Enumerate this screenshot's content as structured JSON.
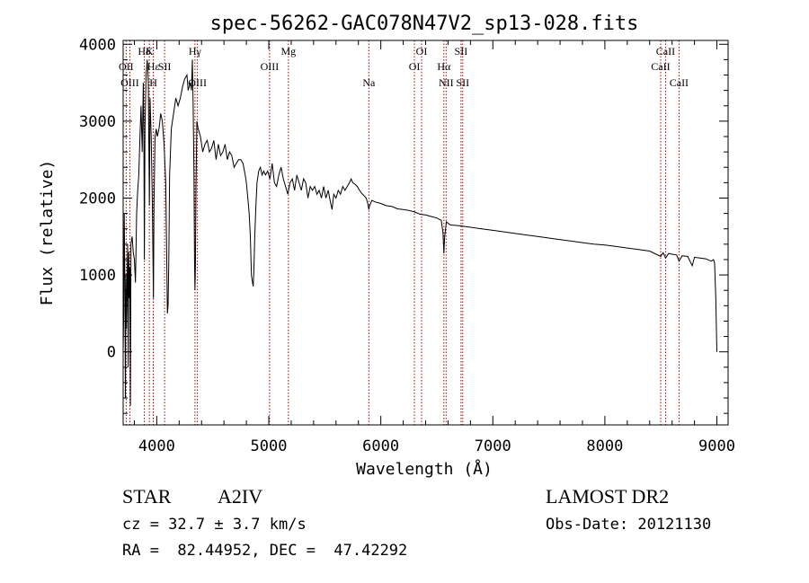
{
  "chart_data": {
    "type": "line",
    "title": "spec-56262-GAC078N47V2_sp13-028.fits",
    "xlabel": "Wavelength (Å)",
    "ylabel": "Flux (relative)",
    "xlim": [
      3700,
      9100
    ],
    "ylim": [
      -950,
      4050
    ],
    "xticks": [
      4000,
      5000,
      6000,
      7000,
      8000,
      9000
    ],
    "yticks": [
      0,
      1000,
      2000,
      3000,
      4000
    ],
    "grid": false,
    "line_color": "#000000",
    "marker_color": "#aa0000",
    "lines": [
      {
        "name": "Hδ",
        "x": 3889,
        "row": 0
      },
      {
        "name": "K",
        "x": 3934,
        "row": 0
      },
      {
        "name": "OII",
        "x": 3727,
        "row": 1
      },
      {
        "name": "Hε",
        "x": 3970,
        "row": 1
      },
      {
        "name": "SII",
        "x": 4070,
        "row": 1
      },
      {
        "name": "OIII",
        "x": 3760,
        "row": 2
      },
      {
        "name": "H",
        "x": 3969,
        "row": 2
      },
      {
        "name": "Hγ",
        "x": 4341,
        "row": 0
      },
      {
        "name": "OIII",
        "x": 4363,
        "row": 2
      },
      {
        "name": "OIII",
        "x": 5007,
        "row": 1
      },
      {
        "name": "Mg",
        "x": 5175,
        "row": 0
      },
      {
        "name": "Na",
        "x": 5893,
        "row": 2
      },
      {
        "name": "OI",
        "x": 6300,
        "row": 1
      },
      {
        "name": "OI",
        "x": 6364,
        "row": 0
      },
      {
        "name": "Hα",
        "x": 6563,
        "row": 1
      },
      {
        "name": "NII",
        "x": 6583,
        "row": 2
      },
      {
        "name": "SII",
        "x": 6716,
        "row": 0
      },
      {
        "name": "SII",
        "x": 6731,
        "row": 2
      },
      {
        "name": "CaII",
        "x": 8498,
        "row": 1
      },
      {
        "name": "CaII",
        "x": 8542,
        "row": 0
      },
      {
        "name": "CaII",
        "x": 8662,
        "row": 2
      }
    ],
    "series": [
      {
        "points": [
          [
            3700,
            0
          ],
          [
            3705,
            500
          ],
          [
            3710,
            1800
          ],
          [
            3715,
            900
          ],
          [
            3720,
            -600
          ],
          [
            3725,
            1000
          ],
          [
            3730,
            300
          ],
          [
            3740,
            1400
          ],
          [
            3745,
            -200
          ],
          [
            3750,
            1300
          ],
          [
            3755,
            700
          ],
          [
            3760,
            1100
          ],
          [
            3765,
            -700
          ],
          [
            3770,
            1400
          ],
          [
            3780,
            1500
          ],
          [
            3790,
            1300
          ],
          [
            3800,
            1200
          ],
          [
            3810,
            900
          ],
          [
            3820,
            1800
          ],
          [
            3830,
            2100
          ],
          [
            3840,
            2300
          ],
          [
            3850,
            2800
          ],
          [
            3860,
            3200
          ],
          [
            3870,
            2600
          ],
          [
            3880,
            3500
          ],
          [
            3885,
            2700
          ],
          [
            3889,
            1200
          ],
          [
            3895,
            2900
          ],
          [
            3905,
            3600
          ],
          [
            3915,
            3800
          ],
          [
            3925,
            3500
          ],
          [
            3934,
            1900
          ],
          [
            3940,
            3300
          ],
          [
            3950,
            2800
          ],
          [
            3960,
            2000
          ],
          [
            3970,
            700
          ],
          [
            3975,
            1900
          ],
          [
            3985,
            2800
          ],
          [
            3995,
            2900
          ],
          [
            4005,
            2800
          ],
          [
            4020,
            2900
          ],
          [
            4035,
            3100
          ],
          [
            4050,
            3000
          ],
          [
            4065,
            2700
          ],
          [
            4080,
            2200
          ],
          [
            4090,
            1100
          ],
          [
            4095,
            500
          ],
          [
            4101,
            600
          ],
          [
            4108,
            1200
          ],
          [
            4115,
            2300
          ],
          [
            4130,
            2900
          ],
          [
            4150,
            3100
          ],
          [
            4170,
            3300
          ],
          [
            4190,
            3200
          ],
          [
            4210,
            3300
          ],
          [
            4230,
            3450
          ],
          [
            4250,
            3550
          ],
          [
            4270,
            3600
          ],
          [
            4280,
            3400
          ],
          [
            4290,
            3450
          ],
          [
            4300,
            3500
          ],
          [
            4310,
            3400
          ],
          [
            4318,
            3800
          ],
          [
            4325,
            3200
          ],
          [
            4332,
            2300
          ],
          [
            4337,
            1200
          ],
          [
            4341,
            800
          ],
          [
            4345,
            1100
          ],
          [
            4350,
            2100
          ],
          [
            4358,
            3000
          ],
          [
            4370,
            2900
          ],
          [
            4390,
            2800
          ],
          [
            4410,
            2600
          ],
          [
            4430,
            2700
          ],
          [
            4450,
            2750
          ],
          [
            4470,
            2600
          ],
          [
            4490,
            2650
          ],
          [
            4510,
            2750
          ],
          [
            4530,
            2500
          ],
          [
            4550,
            2700
          ],
          [
            4570,
            2550
          ],
          [
            4590,
            2600
          ],
          [
            4610,
            2700
          ],
          [
            4630,
            2500
          ],
          [
            4650,
            2600
          ],
          [
            4670,
            2550
          ],
          [
            4690,
            2400
          ],
          [
            4710,
            2450
          ],
          [
            4730,
            2500
          ],
          [
            4750,
            2500
          ],
          [
            4770,
            2450
          ],
          [
            4790,
            2300
          ],
          [
            4800,
            2200
          ],
          [
            4810,
            2050
          ],
          [
            4825,
            1800
          ],
          [
            4835,
            1500
          ],
          [
            4845,
            1000
          ],
          [
            4855,
            900
          ],
          [
            4861,
            850
          ],
          [
            4867,
            1050
          ],
          [
            4875,
            1500
          ],
          [
            4885,
            1900
          ],
          [
            4895,
            2200
          ],
          [
            4910,
            2350
          ],
          [
            4925,
            2400
          ],
          [
            4940,
            2300
          ],
          [
            4955,
            2350
          ],
          [
            4970,
            2300
          ],
          [
            4990,
            2350
          ],
          [
            5010,
            2250
          ],
          [
            5030,
            2450
          ],
          [
            5050,
            2200
          ],
          [
            5070,
            2150
          ],
          [
            5090,
            2300
          ],
          [
            5110,
            2400
          ],
          [
            5130,
            2250
          ],
          [
            5150,
            2150
          ],
          [
            5170,
            2050
          ],
          [
            5190,
            2200
          ],
          [
            5210,
            2250
          ],
          [
            5230,
            2100
          ],
          [
            5250,
            2300
          ],
          [
            5270,
            2200
          ],
          [
            5290,
            2100
          ],
          [
            5310,
            2250
          ],
          [
            5330,
            2200
          ],
          [
            5350,
            2000
          ],
          [
            5370,
            2150
          ],
          [
            5390,
            2100
          ],
          [
            5410,
            2150
          ],
          [
            5430,
            2050
          ],
          [
            5450,
            2100
          ],
          [
            5470,
            2000
          ],
          [
            5490,
            2150
          ],
          [
            5510,
            2000
          ],
          [
            5530,
            2100
          ],
          [
            5550,
            1950
          ],
          [
            5565,
            1850
          ],
          [
            5580,
            2050
          ],
          [
            5600,
            2000
          ],
          [
            5620,
            2100
          ],
          [
            5640,
            2050
          ],
          [
            5660,
            2150
          ],
          [
            5680,
            2100
          ],
          [
            5700,
            2150
          ],
          [
            5720,
            2200
          ],
          [
            5735,
            2250
          ],
          [
            5750,
            2200
          ],
          [
            5770,
            2180
          ],
          [
            5790,
            2150
          ],
          [
            5810,
            2100
          ],
          [
            5830,
            2060
          ],
          [
            5850,
            2030
          ],
          [
            5870,
            2000
          ],
          [
            5885,
            1920
          ],
          [
            5893,
            1850
          ],
          [
            5900,
            1900
          ],
          [
            5920,
            1970
          ],
          [
            5950,
            1950
          ],
          [
            6000,
            1930
          ],
          [
            6050,
            1900
          ],
          [
            6100,
            1890
          ],
          [
            6150,
            1860
          ],
          [
            6200,
            1850
          ],
          [
            6250,
            1840
          ],
          [
            6300,
            1820
          ],
          [
            6350,
            1790
          ],
          [
            6400,
            1780
          ],
          [
            6450,
            1760
          ],
          [
            6500,
            1740
          ],
          [
            6540,
            1710
          ],
          [
            6555,
            1550
          ],
          [
            6563,
            1280
          ],
          [
            6570,
            1500
          ],
          [
            6585,
            1690
          ],
          [
            6620,
            1650
          ],
          [
            6700,
            1640
          ],
          [
            6800,
            1620
          ],
          [
            6900,
            1600
          ],
          [
            7000,
            1580
          ],
          [
            7100,
            1560
          ],
          [
            7200,
            1540
          ],
          [
            7300,
            1520
          ],
          [
            7400,
            1500
          ],
          [
            7500,
            1480
          ],
          [
            7600,
            1460
          ],
          [
            7700,
            1440
          ],
          [
            7800,
            1420
          ],
          [
            7900,
            1400
          ],
          [
            8000,
            1390
          ],
          [
            8100,
            1370
          ],
          [
            8200,
            1350
          ],
          [
            8300,
            1330
          ],
          [
            8400,
            1310
          ],
          [
            8498,
            1240
          ],
          [
            8520,
            1290
          ],
          [
            8542,
            1220
          ],
          [
            8570,
            1280
          ],
          [
            8600,
            1270
          ],
          [
            8640,
            1260
          ],
          [
            8662,
            1180
          ],
          [
            8690,
            1250
          ],
          [
            8740,
            1240
          ],
          [
            8780,
            1120
          ],
          [
            8800,
            1230
          ],
          [
            8850,
            1220
          ],
          [
            8900,
            1210
          ],
          [
            8950,
            1180
          ],
          [
            8970,
            1200
          ],
          [
            8980,
            1150
          ],
          [
            8990,
            700
          ],
          [
            9000,
            0
          ]
        ]
      }
    ]
  },
  "info": {
    "star_label": "STAR",
    "star_type": "A2IV",
    "cz": "cz = 32.7 ± 3.7 km/s",
    "ra_dec": "RA =  82.44952, DEC =  47.42292",
    "survey": "LAMOST DR2",
    "obs_date": "Obs-Date: 20121130"
  }
}
